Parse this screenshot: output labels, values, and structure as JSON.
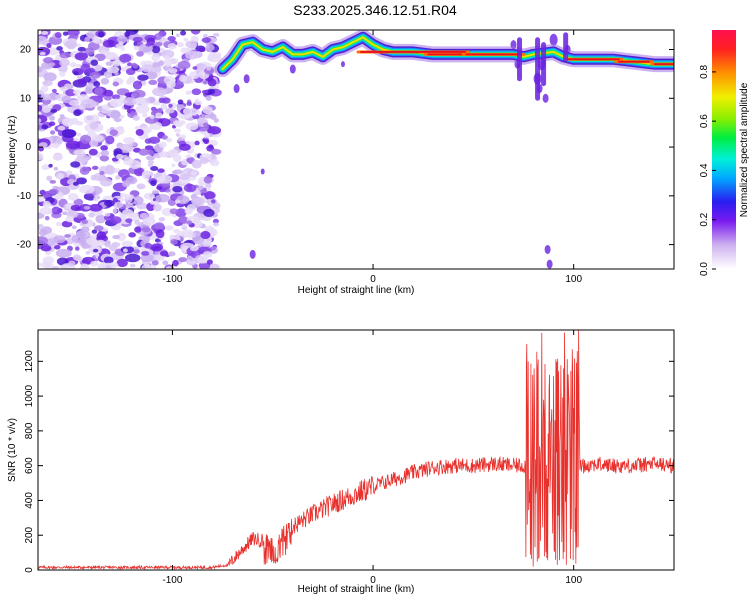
{
  "title": "S233.2025.346.12.51.R04",
  "chart_data": [
    {
      "type": "heatmap",
      "xlabel": "Height of straight line (km)",
      "ylabel": "Frequency (Hz)",
      "xlim": [
        -167,
        150
      ],
      "ylim": [
        -25,
        24
      ],
      "x_ticks": [
        -100,
        0,
        100
      ],
      "y_ticks": [
        -20,
        -10,
        0,
        10,
        20
      ],
      "colorbar": {
        "label": "Normalized spectral amplitude",
        "range": [
          0.0,
          0.97
        ],
        "ticks": [
          0.0,
          0.2,
          0.4,
          0.6,
          0.8
        ],
        "tick_labels": [
          "0.0",
          "0.2",
          "0.4",
          "0.6",
          "0.8"
        ]
      },
      "ridge": {
        "description_note": "dominant frequency ridge",
        "points": [
          [
            -75,
            16
          ],
          [
            -70,
            18
          ],
          [
            -65,
            21
          ],
          [
            -60,
            21.5
          ],
          [
            -55,
            20
          ],
          [
            -50,
            19.5
          ],
          [
            -45,
            20.5
          ],
          [
            -40,
            19
          ],
          [
            -35,
            19
          ],
          [
            -30,
            19.5
          ],
          [
            -25,
            18.5
          ],
          [
            -20,
            20
          ],
          [
            -15,
            20.5
          ],
          [
            -10,
            21.5
          ],
          [
            -5,
            22.5
          ],
          [
            0,
            21
          ],
          [
            5,
            20
          ],
          [
            10,
            19.5
          ],
          [
            20,
            19.5
          ],
          [
            30,
            19
          ],
          [
            40,
            19
          ],
          [
            50,
            19
          ],
          [
            60,
            19
          ],
          [
            70,
            19
          ],
          [
            75,
            18.5
          ],
          [
            80,
            19
          ],
          [
            90,
            19.5
          ],
          [
            95,
            18.5
          ],
          [
            100,
            18
          ],
          [
            110,
            18
          ],
          [
            120,
            18
          ],
          [
            130,
            17.5
          ],
          [
            140,
            17
          ],
          [
            150,
            17
          ]
        ]
      }
    },
    {
      "type": "line",
      "xlabel": "Height of straight line (km)",
      "ylabel": "SNR (10 * v/v)",
      "xlim": [
        -167,
        150
      ],
      "ylim": [
        0,
        1380
      ],
      "x_ticks": [
        -100,
        0,
        100
      ],
      "y_ticks": [
        0,
        200,
        400,
        600,
        800,
        1000,
        1200
      ],
      "series": [
        {
          "name": "SNR",
          "color": "#e8302c",
          "envelope": {
            "x": [
              -167,
              -80,
              -72,
              -65,
              -60,
              -50,
              -40,
              -30,
              -20,
              -10,
              0,
              10,
              20,
              30,
              40,
              50,
              60,
              70,
              75,
              80,
              85,
              90,
              95,
              100,
              105,
              110,
              120,
              130,
              140,
              150
            ],
            "y": [
              15,
              15,
              30,
              120,
              180,
              160,
              250,
              320,
              380,
              430,
              480,
              520,
              560,
              590,
              600,
              600,
              610,
              600,
              600,
              620,
              640,
              600,
              650,
              620,
              600,
              610,
              600,
              600,
              610,
              600
            ]
          }
        }
      ]
    }
  ]
}
